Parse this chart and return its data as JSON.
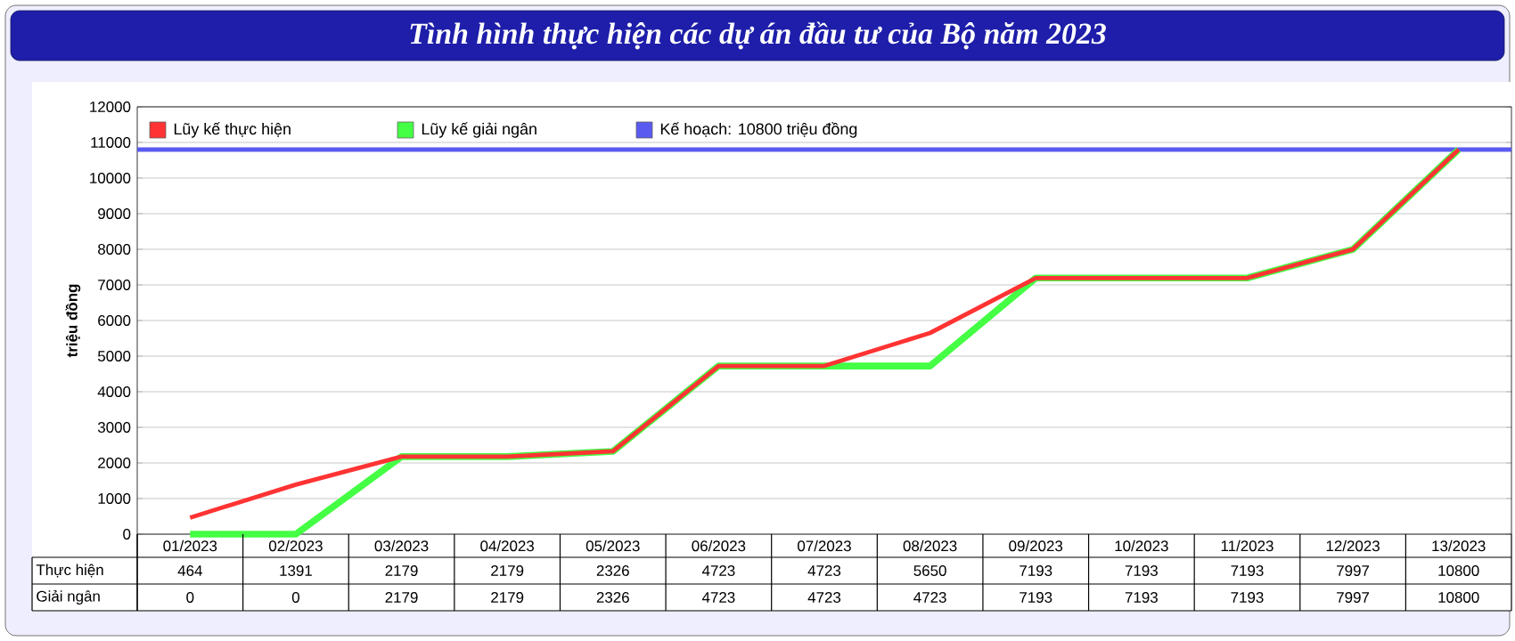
{
  "chart_data": {
    "type": "line",
    "title": "Tình hình thực hiện các dự án đầu tư của Bộ năm 2023",
    "ylabel": "triệu đồng",
    "categories": [
      "01/2023",
      "02/2023",
      "03/2023",
      "04/2023",
      "05/2023",
      "06/2023",
      "07/2023",
      "08/2023",
      "09/2023",
      "10/2023",
      "11/2023",
      "12/2023",
      "13/2023"
    ],
    "series": [
      {
        "name": "Lũy kế giải ngân",
        "color": "#44ff44",
        "values": [
          0,
          0,
          2179,
          2179,
          2326,
          4723,
          4723,
          4723,
          7193,
          7193,
          7193,
          7997,
          10800
        ]
      },
      {
        "name": "Lũy kế thực hiện",
        "color": "#ff3333",
        "values": [
          464,
          1391,
          2179,
          2179,
          2326,
          4723,
          4723,
          5650,
          7193,
          7193,
          7193,
          7997,
          10800
        ]
      }
    ],
    "ref_lines": [
      {
        "axis": "y",
        "value": 10800,
        "label": "Kế hoạch: 10800 triệu đồng",
        "color": "#5a5af0"
      }
    ],
    "annotations": [
      "Thực hiện",
      "Giải ngân"
    ],
    "ylim": [
      0,
      12000
    ],
    "yticks": [
      0,
      1000,
      2000,
      3000,
      4000,
      5000,
      6000,
      7000,
      8000,
      9000,
      10000,
      11000,
      12000
    ],
    "grid": true,
    "legend": "top left",
    "marker": "none",
    "line_style": "solid",
    "data_labels": true
  }
}
